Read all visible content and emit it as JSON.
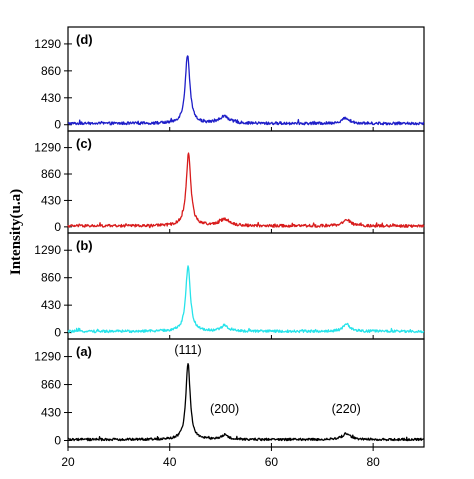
{
  "chart_data": {
    "type": "line",
    "ylabel": "Intensity(u.a)",
    "xlim": [
      20,
      90
    ],
    "x_ticks": [
      "20",
      "40",
      "60",
      "80"
    ],
    "x_tick_values": [
      20,
      40,
      60,
      80
    ],
    "y_ticks": [
      "0",
      "430",
      "860",
      "1290"
    ],
    "y_tick_values": [
      0,
      430,
      860,
      1290
    ],
    "grid": false,
    "legend": "none",
    "panels": [
      {
        "label": "(d)",
        "color": "#1e1ec8",
        "ylim": [
          -100,
          1560
        ],
        "baseline": 20,
        "noise": 22,
        "peaks": [
          {
            "x": 43.5,
            "height": 1090,
            "width": 0.55
          },
          {
            "x": 50.7,
            "height": 110,
            "width": 1.2
          },
          {
            "x": 74.6,
            "height": 90,
            "width": 0.9
          }
        ],
        "annotations": []
      },
      {
        "label": "(c)",
        "color": "#d81c1c",
        "ylim": [
          -100,
          1560
        ],
        "baseline": 15,
        "noise": 22,
        "peaks": [
          {
            "x": 43.7,
            "height": 1170,
            "width": 0.55
          },
          {
            "x": 50.8,
            "height": 110,
            "width": 1.2
          },
          {
            "x": 74.8,
            "height": 100,
            "width": 0.9
          }
        ],
        "annotations": []
      },
      {
        "label": "(b)",
        "color": "#27e3ea",
        "ylim": [
          -100,
          1560
        ],
        "baseline": 20,
        "noise": 20,
        "peaks": [
          {
            "x": 43.6,
            "height": 1010,
            "width": 0.55
          },
          {
            "x": 50.8,
            "height": 90,
            "width": 0.8
          },
          {
            "x": 74.7,
            "height": 110,
            "width": 0.8
          }
        ],
        "annotations": []
      },
      {
        "label": "(a)",
        "color": "#000000",
        "ylim": [
          -100,
          1560
        ],
        "baseline": 15,
        "noise": 18,
        "peaks": [
          {
            "x": 43.6,
            "height": 1180,
            "width": 0.5
          },
          {
            "x": 50.8,
            "height": 70,
            "width": 0.7
          },
          {
            "x": 74.7,
            "height": 90,
            "width": 0.9
          }
        ],
        "annotations": [
          {
            "text": "(111)",
            "x": 43.6
          },
          {
            "text": "(200)",
            "x": 50.8
          },
          {
            "text": "(220)",
            "x": 74.7
          }
        ]
      }
    ]
  }
}
